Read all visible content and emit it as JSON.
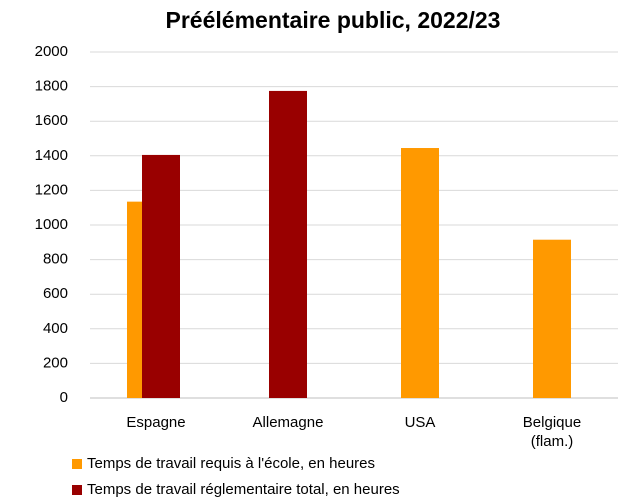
{
  "chart_data": {
    "type": "bar",
    "title": "Préélémentaire public, 2022/23",
    "categories": [
      "Espagne",
      "Allemagne",
      "USA",
      "Belgique (flam.)"
    ],
    "series": [
      {
        "name": "Temps de travail requis à l'école, en heures",
        "color": "#ff9900",
        "values": [
          1135,
          null,
          1445,
          915
        ]
      },
      {
        "name": "Temps de travail réglementaire total, en heures",
        "color": "#990000",
        "values": [
          1405,
          1775,
          null,
          null
        ]
      }
    ],
    "ylim": [
      0,
      2000
    ],
    "yticks": [
      0,
      200,
      400,
      600,
      800,
      1000,
      1200,
      1400,
      1600,
      1800,
      2000
    ],
    "grid": true,
    "legend": "bottom"
  }
}
